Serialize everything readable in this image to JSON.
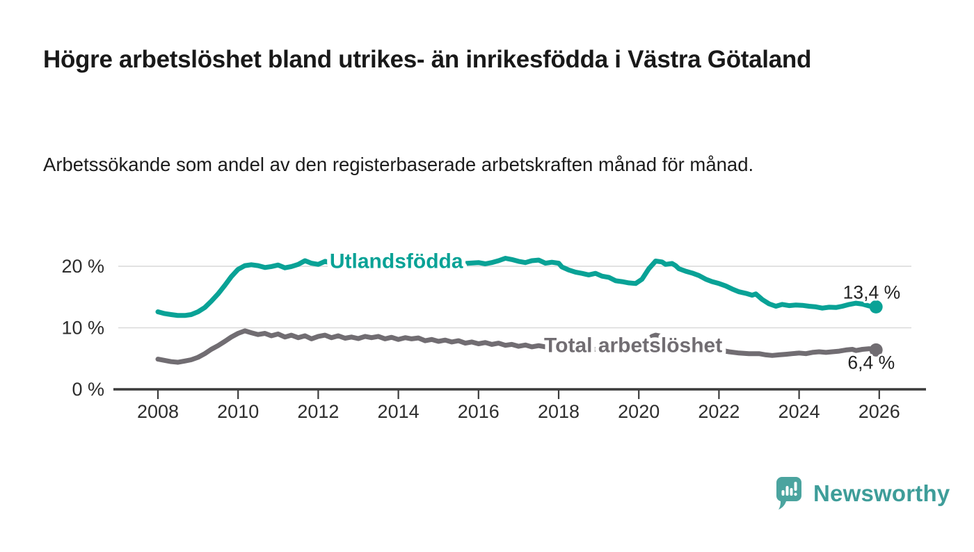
{
  "chart_data": {
    "type": "line",
    "title": "Högre arbetslöshet bland utrikes- än inrikesfödda i Västra Götaland",
    "subtitle": "Arbetssökande som andel av den registerbaserade arbetskraften månad för månad.",
    "xlabel": "",
    "ylabel": "",
    "xlim": [
      2007,
      2027
    ],
    "ylim": [
      0,
      22
    ],
    "grid": "horizontal",
    "grid_color": "#d9d9d9",
    "axis_color": "#3b3b3b",
    "axis_text_color": "#2d2d2d",
    "value_label_color": "#222222",
    "x_ticks": [
      2008,
      2010,
      2012,
      2014,
      2016,
      2018,
      2020,
      2022,
      2024,
      2026
    ],
    "y_ticks": [
      {
        "value": 0,
        "label": "0 %"
      },
      {
        "value": 10,
        "label": "10 %"
      },
      {
        "value": 20,
        "label": "20 %"
      }
    ],
    "series": [
      {
        "id": "utlandsfodda",
        "name": "Utlandsfödda",
        "color": "#09a296",
        "end_label": "13,4 %",
        "end_value": 13.4,
        "label_pos": [
          2013.95,
          20.8
        ],
        "end_label_offset": [
          35,
          -12
        ],
        "points": [
          [
            2008.0,
            12.6
          ],
          [
            2008.17,
            12.3
          ],
          [
            2008.33,
            12.15
          ],
          [
            2008.5,
            12.0
          ],
          [
            2008.67,
            12.0
          ],
          [
            2008.83,
            12.15
          ],
          [
            2009.0,
            12.6
          ],
          [
            2009.17,
            13.3
          ],
          [
            2009.33,
            14.3
          ],
          [
            2009.5,
            15.5
          ],
          [
            2009.67,
            16.9
          ],
          [
            2009.83,
            18.3
          ],
          [
            2010.0,
            19.5
          ],
          [
            2010.17,
            20.1
          ],
          [
            2010.33,
            20.25
          ],
          [
            2010.5,
            20.1
          ],
          [
            2010.67,
            19.8
          ],
          [
            2010.83,
            19.95
          ],
          [
            2011.0,
            20.2
          ],
          [
            2011.17,
            19.75
          ],
          [
            2011.33,
            19.95
          ],
          [
            2011.5,
            20.3
          ],
          [
            2011.67,
            20.9
          ],
          [
            2011.83,
            20.5
          ],
          [
            2012.0,
            20.3
          ],
          [
            2012.17,
            20.8
          ],
          [
            2012.33,
            20.5
          ],
          [
            2012.5,
            20.7
          ],
          [
            2012.67,
            20.4
          ],
          [
            2012.83,
            20.55
          ],
          [
            2013.0,
            20.7
          ],
          [
            2013.25,
            20.4
          ],
          [
            2013.5,
            20.6
          ],
          [
            2013.75,
            20.35
          ],
          [
            2014.0,
            20.55
          ],
          [
            2014.25,
            20.65
          ],
          [
            2014.5,
            20.4
          ],
          [
            2014.75,
            20.55
          ],
          [
            2015.0,
            20.4
          ],
          [
            2015.25,
            20.6
          ],
          [
            2015.5,
            20.35
          ],
          [
            2015.75,
            20.5
          ],
          [
            2016.0,
            20.6
          ],
          [
            2016.17,
            20.4
          ],
          [
            2016.33,
            20.6
          ],
          [
            2016.5,
            20.9
          ],
          [
            2016.67,
            21.3
          ],
          [
            2016.83,
            21.1
          ],
          [
            2017.0,
            20.8
          ],
          [
            2017.17,
            20.6
          ],
          [
            2017.33,
            20.9
          ],
          [
            2017.5,
            21.0
          ],
          [
            2017.67,
            20.5
          ],
          [
            2017.83,
            20.65
          ],
          [
            2018.0,
            20.5
          ],
          [
            2018.08,
            19.9
          ],
          [
            2018.25,
            19.4
          ],
          [
            2018.42,
            19.05
          ],
          [
            2018.58,
            18.85
          ],
          [
            2018.75,
            18.6
          ],
          [
            2018.92,
            18.85
          ],
          [
            2019.08,
            18.4
          ],
          [
            2019.25,
            18.2
          ],
          [
            2019.42,
            17.65
          ],
          [
            2019.58,
            17.5
          ],
          [
            2019.75,
            17.3
          ],
          [
            2019.92,
            17.2
          ],
          [
            2020.08,
            17.9
          ],
          [
            2020.25,
            19.6
          ],
          [
            2020.42,
            20.85
          ],
          [
            2020.58,
            20.7
          ],
          [
            2020.67,
            20.3
          ],
          [
            2020.83,
            20.45
          ],
          [
            2020.92,
            20.1
          ],
          [
            2021.0,
            19.6
          ],
          [
            2021.17,
            19.2
          ],
          [
            2021.33,
            18.9
          ],
          [
            2021.5,
            18.5
          ],
          [
            2021.67,
            17.9
          ],
          [
            2021.83,
            17.5
          ],
          [
            2022.0,
            17.2
          ],
          [
            2022.17,
            16.8
          ],
          [
            2022.33,
            16.3
          ],
          [
            2022.5,
            15.85
          ],
          [
            2022.67,
            15.6
          ],
          [
            2022.83,
            15.3
          ],
          [
            2022.92,
            15.5
          ],
          [
            2023.08,
            14.6
          ],
          [
            2023.25,
            13.9
          ],
          [
            2023.42,
            13.5
          ],
          [
            2023.58,
            13.8
          ],
          [
            2023.75,
            13.6
          ],
          [
            2023.92,
            13.7
          ],
          [
            2024.08,
            13.65
          ],
          [
            2024.25,
            13.5
          ],
          [
            2024.42,
            13.4
          ],
          [
            2024.58,
            13.2
          ],
          [
            2024.75,
            13.35
          ],
          [
            2024.92,
            13.3
          ],
          [
            2025.08,
            13.5
          ],
          [
            2025.25,
            13.8
          ],
          [
            2025.42,
            14.0
          ],
          [
            2025.58,
            13.85
          ],
          [
            2025.75,
            13.55
          ],
          [
            2025.92,
            13.4
          ]
        ]
      },
      {
        "id": "total",
        "name": "Total arbetslöshet",
        "color": "#716d72",
        "end_label": "6,4 %",
        "end_value": 6.4,
        "label_pos": [
          2019.86,
          7.1
        ],
        "end_label_offset": [
          27,
          27
        ],
        "points": [
          [
            2008.0,
            4.9
          ],
          [
            2008.17,
            4.7
          ],
          [
            2008.33,
            4.5
          ],
          [
            2008.5,
            4.4
          ],
          [
            2008.67,
            4.6
          ],
          [
            2008.83,
            4.8
          ],
          [
            2009.0,
            5.2
          ],
          [
            2009.17,
            5.8
          ],
          [
            2009.33,
            6.5
          ],
          [
            2009.5,
            7.1
          ],
          [
            2009.67,
            7.8
          ],
          [
            2009.83,
            8.5
          ],
          [
            2010.0,
            9.1
          ],
          [
            2010.17,
            9.5
          ],
          [
            2010.33,
            9.2
          ],
          [
            2010.5,
            8.9
          ],
          [
            2010.67,
            9.1
          ],
          [
            2010.83,
            8.7
          ],
          [
            2011.0,
            9.0
          ],
          [
            2011.17,
            8.5
          ],
          [
            2011.33,
            8.8
          ],
          [
            2011.5,
            8.4
          ],
          [
            2011.67,
            8.7
          ],
          [
            2011.83,
            8.2
          ],
          [
            2012.0,
            8.6
          ],
          [
            2012.17,
            8.8
          ],
          [
            2012.33,
            8.4
          ],
          [
            2012.5,
            8.7
          ],
          [
            2012.67,
            8.3
          ],
          [
            2012.83,
            8.5
          ],
          [
            2013.0,
            8.25
          ],
          [
            2013.17,
            8.6
          ],
          [
            2013.33,
            8.4
          ],
          [
            2013.5,
            8.6
          ],
          [
            2013.67,
            8.2
          ],
          [
            2013.83,
            8.45
          ],
          [
            2014.0,
            8.1
          ],
          [
            2014.17,
            8.4
          ],
          [
            2014.33,
            8.2
          ],
          [
            2014.5,
            8.35
          ],
          [
            2014.67,
            7.9
          ],
          [
            2014.83,
            8.1
          ],
          [
            2015.0,
            7.8
          ],
          [
            2015.17,
            8.0
          ],
          [
            2015.33,
            7.7
          ],
          [
            2015.5,
            7.9
          ],
          [
            2015.67,
            7.5
          ],
          [
            2015.83,
            7.7
          ],
          [
            2016.0,
            7.4
          ],
          [
            2016.17,
            7.6
          ],
          [
            2016.33,
            7.3
          ],
          [
            2016.5,
            7.5
          ],
          [
            2016.67,
            7.15
          ],
          [
            2016.83,
            7.3
          ],
          [
            2017.0,
            7.0
          ],
          [
            2017.17,
            7.2
          ],
          [
            2017.33,
            6.9
          ],
          [
            2017.5,
            7.1
          ],
          [
            2017.67,
            6.9
          ],
          [
            2017.83,
            7.0
          ],
          [
            2018.0,
            6.8
          ],
          [
            2018.25,
            6.7
          ],
          [
            2018.5,
            6.6
          ],
          [
            2018.75,
            6.5
          ],
          [
            2019.0,
            6.5
          ],
          [
            2019.25,
            6.4
          ],
          [
            2019.5,
            6.3
          ],
          [
            2019.75,
            6.4
          ],
          [
            2020.0,
            6.6
          ],
          [
            2020.17,
            7.6
          ],
          [
            2020.33,
            8.6
          ],
          [
            2020.42,
            8.8
          ],
          [
            2020.58,
            8.6
          ],
          [
            2020.75,
            8.3
          ],
          [
            2021.0,
            7.9
          ],
          [
            2021.25,
            7.5
          ],
          [
            2021.5,
            7.1
          ],
          [
            2021.75,
            6.7
          ],
          [
            2022.0,
            6.4
          ],
          [
            2022.25,
            6.1
          ],
          [
            2022.5,
            5.9
          ],
          [
            2022.75,
            5.8
          ],
          [
            2023.0,
            5.8
          ],
          [
            2023.17,
            5.6
          ],
          [
            2023.33,
            5.5
          ],
          [
            2023.5,
            5.6
          ],
          [
            2023.67,
            5.7
          ],
          [
            2023.83,
            5.8
          ],
          [
            2024.0,
            5.9
          ],
          [
            2024.17,
            5.8
          ],
          [
            2024.33,
            6.0
          ],
          [
            2024.5,
            6.1
          ],
          [
            2024.67,
            6.0
          ],
          [
            2024.83,
            6.1
          ],
          [
            2025.0,
            6.2
          ],
          [
            2025.17,
            6.4
          ],
          [
            2025.33,
            6.5
          ],
          [
            2025.42,
            6.3
          ],
          [
            2025.58,
            6.5
          ],
          [
            2025.75,
            6.6
          ],
          [
            2025.92,
            6.4
          ]
        ]
      }
    ]
  },
  "footer": {
    "brand": "Newsworthy",
    "logo_icon": "speech-bubble-bar-chart-icon",
    "brand_color": "#3e9d99",
    "icon_color": "#4ba49f"
  }
}
